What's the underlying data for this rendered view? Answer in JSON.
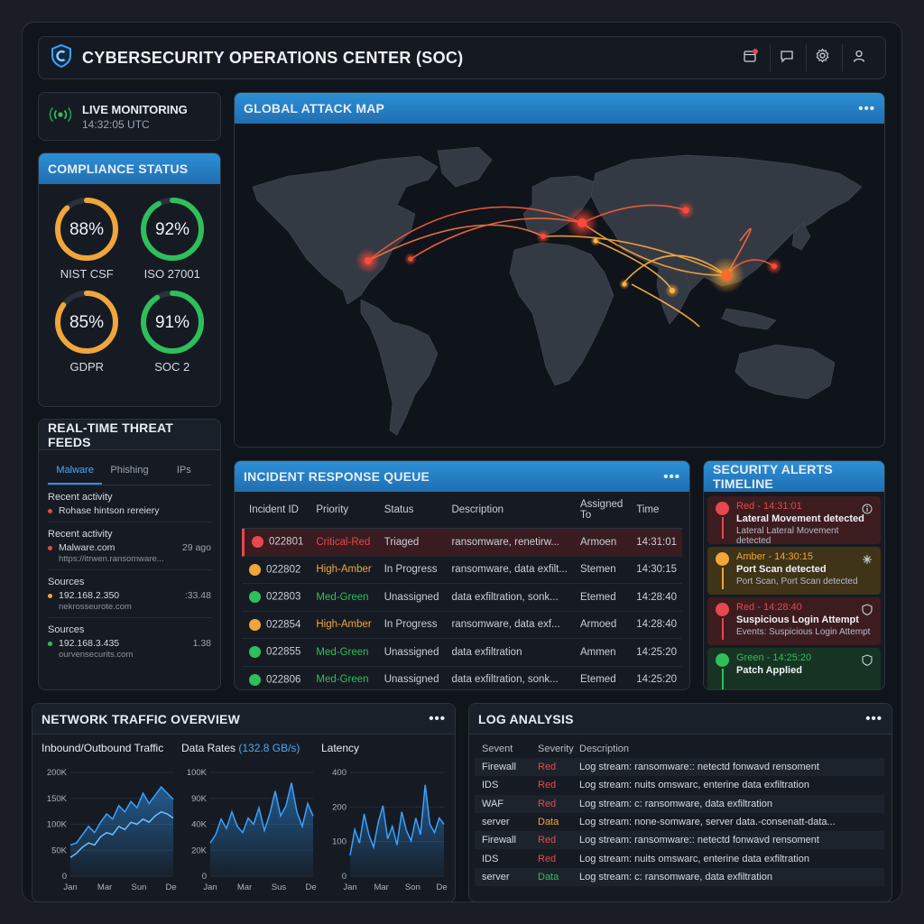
{
  "header": {
    "title": "CYBERSECURITY OPERATIONS CENTER (SOC)"
  },
  "live": {
    "title": "LIVE MONITORING",
    "time": "14:32:05 UTC"
  },
  "compliance": {
    "title": "COMPLIANCE STATUS",
    "items": [
      {
        "label": "NIST CSF",
        "value": "88%",
        "pct": 88,
        "color": "#f0a63a"
      },
      {
        "label": "ISO 27001",
        "value": "92%",
        "pct": 92,
        "color": "#2fbf5a"
      },
      {
        "label": "GDPR",
        "value": "85%",
        "pct": 85,
        "color": "#f0a63a"
      },
      {
        "label": "SOC 2",
        "value": "91%",
        "pct": 91,
        "color": "#2fbf5a"
      }
    ]
  },
  "feeds": {
    "title": "REAL-TIME THREAT FEEDS",
    "tabs": [
      "Malware",
      "Phishing",
      "IPs"
    ],
    "items": [
      {
        "heading": "Recent activity",
        "line": "Rohase hintson rereiery",
        "value": "",
        "sub": "",
        "color": "#e5484d"
      },
      {
        "heading": "Recent activity",
        "line": "Malware.com",
        "value": "29 ago",
        "sub": "https://itrwen.ransomware...",
        "color": "#e5484d"
      },
      {
        "heading": "Sources",
        "line": "192.168.2.350",
        "value": ":33.48",
        "sub": "nekrosseurote.com",
        "color": "#f0a63a"
      },
      {
        "heading": "Sources",
        "line": "192.168.3.435",
        "value": "1.38",
        "sub": "ourvensecurits.com",
        "color": "#2fbf5a"
      }
    ]
  },
  "map": {
    "title": "GLOBAL ATTACK MAP"
  },
  "incidents": {
    "title": "INCIDENT RESPONSE QUEUE",
    "columns": [
      "Incident ID",
      "Priority",
      "Status",
      "Description",
      "Assigned To",
      "Time"
    ],
    "rows": [
      {
        "id": "022801",
        "priority": "Critical-Red",
        "status": "Triaged",
        "description": "ransomware, renetirw...",
        "assigned": "Armoen",
        "time": "14:31:01",
        "color": "#e5484d"
      },
      {
        "id": "022802",
        "priority": "High-Amber",
        "status": "In Progress",
        "description": "ransomware, data exfilt...",
        "assigned": "Stemen",
        "time": "14:30:15",
        "color": "#f0a63a"
      },
      {
        "id": "022803",
        "priority": "Med-Green",
        "status": "Unassigned",
        "description": "data exfiltration, sonk...",
        "assigned": "Etemed",
        "time": "14:28:40",
        "color": "#2fbf5a"
      },
      {
        "id": "022854",
        "priority": "High-Amber",
        "status": "In Progress",
        "description": "ransomware, data exf...",
        "assigned": "Armoed",
        "time": "14:28:40",
        "color": "#f0a63a"
      },
      {
        "id": "022855",
        "priority": "Med-Green",
        "status": "Unassigned",
        "description": "data exfiltration",
        "assigned": "Ammen",
        "time": "14:25:20",
        "color": "#2fbf5a"
      },
      {
        "id": "022806",
        "priority": "Med-Green",
        "status": "Unassigned",
        "description": "data exfiltration, sonk...",
        "assigned": "Etemed",
        "time": "14:25:20",
        "color": "#2fbf5a"
      }
    ]
  },
  "timeline": {
    "title": "SECURITY ALERTS TIMELINE",
    "alerts": [
      {
        "meta": "Red - 14:31:01",
        "title": "Lateral Movement detected",
        "detail": "Lateral Lateral Movement detected",
        "color": "#e5484d",
        "bg": "#3d1c20",
        "icon": "info-icon"
      },
      {
        "meta": "Amber - 14:30:15",
        "title": "Port Scan detected",
        "detail": "Port Scan, Port Scan detected",
        "color": "#f0a63a",
        "bg": "#3f3318",
        "icon": "burst-icon"
      },
      {
        "meta": "Red - 14:28:40",
        "title": "Suspicious Login Attempt",
        "detail": "Events: Suspicious Login Attempt",
        "color": "#e5484d",
        "bg": "#3d1c20",
        "icon": "shield-icon"
      },
      {
        "meta": "Green - 14:25:20",
        "title": "Patch Applied",
        "detail": "",
        "color": "#2fbf5a",
        "bg": "#173323",
        "icon": "shield-icon"
      }
    ]
  },
  "network": {
    "title": "NETWORK TRAFFIC OVERVIEW",
    "charts": [
      {
        "title": "Inbound/Outbound Traffic",
        "highlight": "",
        "yticks": [
          "200K",
          "150K",
          "100K",
          "50K",
          "0"
        ],
        "xticks": [
          "Jan",
          "Mar",
          "Sun",
          "Dec"
        ]
      },
      {
        "title": "Data Rates",
        "highlight": "(132.8 GB/s)",
        "yticks": [
          "100K",
          "90K",
          "40K",
          "20K",
          "0"
        ],
        "xticks": [
          "Jan",
          "Mar",
          "Sus",
          "Dec"
        ]
      },
      {
        "title": "Latency",
        "highlight": "",
        "yticks": [
          "400",
          "200",
          "100",
          "0"
        ],
        "xticks": [
          "Jan",
          "Mar",
          "Son",
          "Dec"
        ]
      }
    ]
  },
  "logs": {
    "title": "LOG ANALYSIS",
    "columns": [
      "Sevent",
      "Severity",
      "Description"
    ],
    "rows": [
      {
        "source": "Firewall",
        "severity": "Red",
        "description": "Log stream: ransomware:: netectd fonwavd rensoment",
        "color": "#e5484d"
      },
      {
        "source": "IDS",
        "severity": "Red",
        "description": "Log stream: nuits omswarc, enterine data exfiltration",
        "color": "#e5484d"
      },
      {
        "source": "WAF",
        "severity": "Red",
        "description": "Log stream: c: ransomware, data exfiltration",
        "color": "#e5484d"
      },
      {
        "source": "server",
        "severity": "Data",
        "description": "Log stream: none-somware, server data.-consenatt-data...",
        "color": "#f0a63a"
      },
      {
        "source": "Firewall",
        "severity": "Red",
        "description": "Log stream: ransomware:: netectd fonwavd rensoment",
        "color": "#e5484d"
      },
      {
        "source": "IDS",
        "severity": "Red",
        "description": "Log stream: nuits omswarc, enterine data exfiltration",
        "color": "#e5484d"
      },
      {
        "source": "server",
        "severity": "Data",
        "description": "Log stream: c: ransomware, data exfiltration",
        "color": "#2fbf5a"
      }
    ]
  }
}
